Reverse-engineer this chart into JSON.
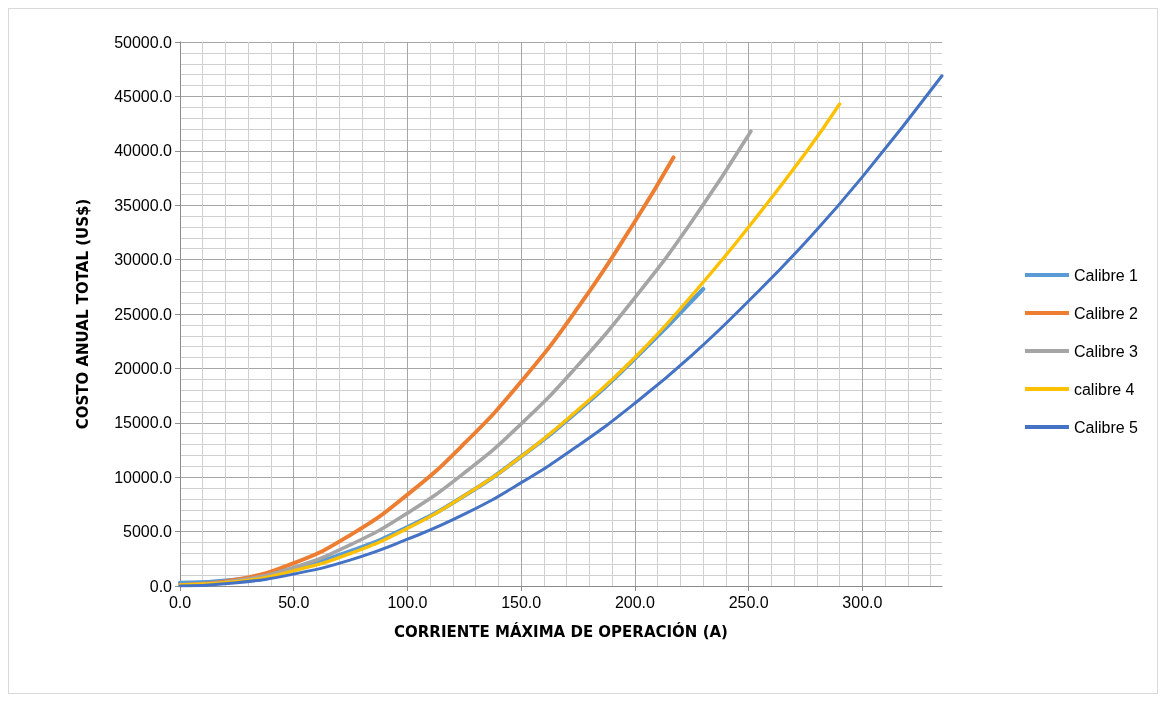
{
  "chart_data": {
    "type": "line",
    "xlabel": "CORRIENTE MÁXIMA DE OPERACIÓN (A)",
    "ylabel": "COSTO ANUAL TOTAL (US$)",
    "xlim": [
      0,
      335
    ],
    "xticks": [
      {
        "value": 0,
        "label": "0.0"
      },
      {
        "value": 50,
        "label": "50.0"
      },
      {
        "value": 100,
        "label": "100.0"
      },
      {
        "value": 150,
        "label": "150.0"
      },
      {
        "value": 200,
        "label": "200.0"
      },
      {
        "value": 250,
        "label": "250.0"
      },
      {
        "value": 300,
        "label": "300.0"
      }
    ],
    "ylim": [
      0,
      50000
    ],
    "yticks": [
      {
        "value": 0,
        "label": "0.0"
      },
      {
        "value": 5000,
        "label": "5000.0"
      },
      {
        "value": 10000,
        "label": "10000.0"
      },
      {
        "value": 15000,
        "label": "15000.0"
      },
      {
        "value": 20000,
        "label": "20000.0"
      },
      {
        "value": 25000,
        "label": "25000.0"
      },
      {
        "value": 30000,
        "label": "30000.0"
      },
      {
        "value": 35000,
        "label": "35000.0"
      },
      {
        "value": 40000,
        "label": "40000.0"
      },
      {
        "value": 45000,
        "label": "45000.0"
      },
      {
        "value": 50000,
        "label": "50000.0"
      }
    ],
    "grid": true,
    "legend": "right",
    "marker": "none",
    "line_style": "solid",
    "series": [
      {
        "name": "Calibre 1",
        "color": "#5b9bd5",
        "x": [
          0,
          25,
          50,
          75,
          100,
          125,
          150,
          175,
          200,
          230
        ],
        "values": [
          300,
          600,
          1600,
          3200,
          5400,
          8300,
          11900,
          16100,
          20900,
          27300
        ]
      },
      {
        "name": "Calibre 2",
        "color": "#ed7d31",
        "x": [
          0,
          25,
          50,
          75,
          100,
          125,
          150,
          175,
          200,
          217
        ],
        "values": [
          100,
          600,
          2100,
          4700,
          8400,
          13100,
          18800,
          25600,
          33500,
          39400
        ]
      },
      {
        "name": "Calibre 3",
        "color": "#a5a5a5",
        "x": [
          0,
          25,
          50,
          75,
          100,
          125,
          150,
          175,
          200,
          225,
          251
        ],
        "values": [
          100,
          500,
          1700,
          3800,
          6700,
          10400,
          14900,
          20300,
          26500,
          33500,
          41800
        ]
      },
      {
        "name": "calibre 4",
        "color": "#ffc000",
        "x": [
          0,
          25,
          50,
          75,
          100,
          125,
          150,
          175,
          200,
          225,
          250,
          275,
          290
        ],
        "values": [
          100,
          400,
          1400,
          3000,
          5300,
          8300,
          11900,
          16200,
          21000,
          26700,
          33000,
          39800,
          44300
        ]
      },
      {
        "name": "Calibre 5",
        "color": "#4472c4",
        "x": [
          0,
          25,
          50,
          75,
          100,
          125,
          150,
          175,
          200,
          225,
          250,
          275,
          300,
          335
        ],
        "values": [
          0,
          300,
          1100,
          2400,
          4300,
          6600,
          9500,
          12900,
          16800,
          21200,
          26200,
          31600,
          37600,
          46900
        ]
      }
    ]
  }
}
